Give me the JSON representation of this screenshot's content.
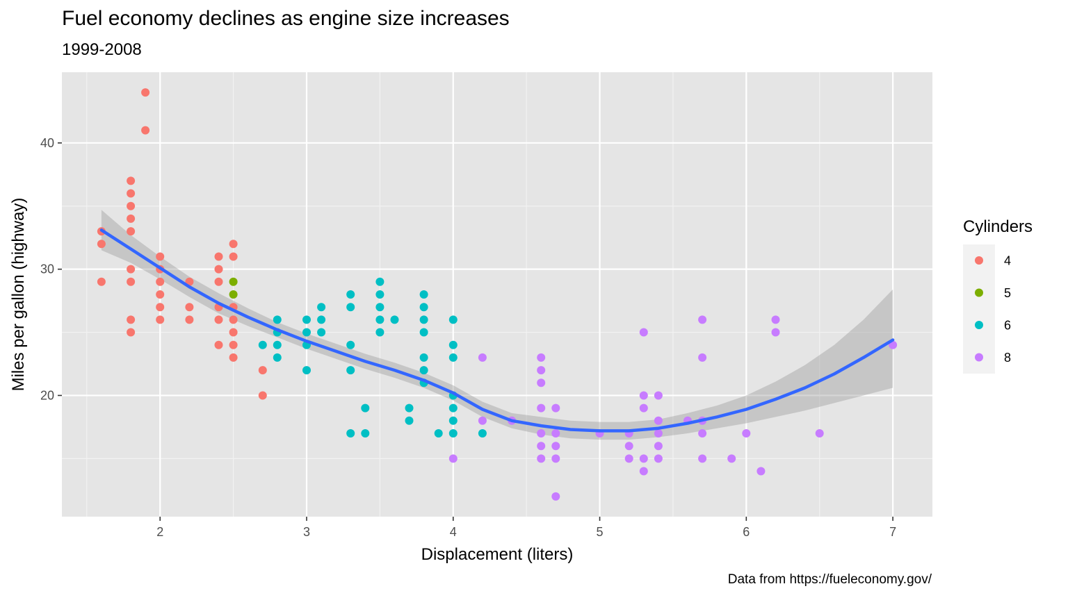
{
  "chart_data": {
    "type": "scatter",
    "title": "Fuel economy declines as engine size increases",
    "subtitle": "1999-2008",
    "caption": "Data from https://fueleconomy.gov/",
    "xlabel": "Displacement (liters)",
    "ylabel": "Miles per gallon (highway)",
    "xlim": [
      1.33,
      7.27
    ],
    "ylim": [
      10.4,
      45.6
    ],
    "x_ticks": [
      2,
      3,
      4,
      5,
      6,
      7
    ],
    "x_tick_labels": [
      "2",
      "3",
      "4",
      "5",
      "6",
      "7"
    ],
    "y_ticks": [
      20,
      30,
      40
    ],
    "y_tick_labels": [
      "20",
      "30",
      "40"
    ],
    "x_minor_ticks": [
      1.5,
      2.5,
      3.5,
      4.5,
      5.5,
      6.5
    ],
    "y_minor_ticks": [
      15,
      25,
      35
    ],
    "grid": true,
    "background": "#e5e5e5",
    "legend": {
      "title": "Cylinders",
      "position": "right",
      "entries": [
        {
          "label": "4",
          "color": "#f8766d"
        },
        {
          "label": "5",
          "color": "#7cae00"
        },
        {
          "label": "6",
          "color": "#00bfc4"
        },
        {
          "label": "8",
          "color": "#c77cff"
        }
      ]
    },
    "series": [
      {
        "name": "4",
        "color": "#f8766d",
        "points": [
          [
            1.6,
            33
          ],
          [
            1.6,
            32
          ],
          [
            1.6,
            29
          ],
          [
            1.8,
            37
          ],
          [
            1.8,
            36
          ],
          [
            1.8,
            35
          ],
          [
            1.8,
            34
          ],
          [
            1.8,
            33
          ],
          [
            1.8,
            30
          ],
          [
            1.8,
            29
          ],
          [
            1.8,
            26
          ],
          [
            1.8,
            25
          ],
          [
            1.9,
            44
          ],
          [
            1.9,
            41
          ],
          [
            2.0,
            31
          ],
          [
            2.0,
            30
          ],
          [
            2.0,
            29
          ],
          [
            2.0,
            28
          ],
          [
            2.0,
            27
          ],
          [
            2.0,
            26
          ],
          [
            2.2,
            29
          ],
          [
            2.2,
            27
          ],
          [
            2.2,
            26
          ],
          [
            2.4,
            31
          ],
          [
            2.4,
            30
          ],
          [
            2.4,
            29
          ],
          [
            2.4,
            27
          ],
          [
            2.4,
            26
          ],
          [
            2.4,
            24
          ],
          [
            2.5,
            32
          ],
          [
            2.5,
            31
          ],
          [
            2.5,
            27
          ],
          [
            2.5,
            26
          ],
          [
            2.5,
            25
          ],
          [
            2.5,
            24
          ],
          [
            2.5,
            23
          ],
          [
            2.7,
            22
          ],
          [
            2.7,
            20
          ]
        ]
      },
      {
        "name": "5",
        "color": "#7cae00",
        "points": [
          [
            2.5,
            29
          ],
          [
            2.5,
            28
          ]
        ]
      },
      {
        "name": "6",
        "color": "#00bfc4",
        "points": [
          [
            2.7,
            24
          ],
          [
            2.8,
            26
          ],
          [
            2.8,
            25
          ],
          [
            2.8,
            24
          ],
          [
            2.8,
            23
          ],
          [
            3.0,
            26
          ],
          [
            3.0,
            25
          ],
          [
            3.0,
            24
          ],
          [
            3.0,
            22
          ],
          [
            3.1,
            27
          ],
          [
            3.1,
            26
          ],
          [
            3.1,
            25
          ],
          [
            3.3,
            28
          ],
          [
            3.3,
            27
          ],
          [
            3.3,
            24
          ],
          [
            3.3,
            22
          ],
          [
            3.3,
            17
          ],
          [
            3.4,
            19
          ],
          [
            3.4,
            17
          ],
          [
            3.5,
            29
          ],
          [
            3.5,
            28
          ],
          [
            3.5,
            27
          ],
          [
            3.5,
            26
          ],
          [
            3.5,
            25
          ],
          [
            3.6,
            26
          ],
          [
            3.7,
            19
          ],
          [
            3.7,
            18
          ],
          [
            3.8,
            28
          ],
          [
            3.8,
            27
          ],
          [
            3.8,
            26
          ],
          [
            3.8,
            25
          ],
          [
            3.8,
            23
          ],
          [
            3.8,
            22
          ],
          [
            3.8,
            21
          ],
          [
            3.9,
            17
          ],
          [
            4.0,
            26
          ],
          [
            4.0,
            24
          ],
          [
            4.0,
            23
          ],
          [
            4.0,
            20
          ],
          [
            4.0,
            19
          ],
          [
            4.0,
            18
          ],
          [
            4.0,
            17
          ],
          [
            4.2,
            17
          ]
        ]
      },
      {
        "name": "8",
        "color": "#c77cff",
        "points": [
          [
            4.0,
            15
          ],
          [
            4.2,
            23
          ],
          [
            4.2,
            18
          ],
          [
            4.4,
            18
          ],
          [
            4.6,
            23
          ],
          [
            4.6,
            22
          ],
          [
            4.6,
            21
          ],
          [
            4.6,
            19
          ],
          [
            4.6,
            17
          ],
          [
            4.6,
            16
          ],
          [
            4.6,
            15
          ],
          [
            4.7,
            19
          ],
          [
            4.7,
            17
          ],
          [
            4.7,
            16
          ],
          [
            4.7,
            15
          ],
          [
            4.7,
            12
          ],
          [
            5.0,
            17
          ],
          [
            5.2,
            17
          ],
          [
            5.2,
            16
          ],
          [
            5.2,
            15
          ],
          [
            5.3,
            25
          ],
          [
            5.3,
            20
          ],
          [
            5.3,
            19
          ],
          [
            5.3,
            15
          ],
          [
            5.3,
            14
          ],
          [
            5.4,
            20
          ],
          [
            5.4,
            18
          ],
          [
            5.4,
            17
          ],
          [
            5.4,
            16
          ],
          [
            5.4,
            15
          ],
          [
            5.6,
            18
          ],
          [
            5.7,
            26
          ],
          [
            5.7,
            23
          ],
          [
            5.7,
            18
          ],
          [
            5.7,
            17
          ],
          [
            5.7,
            15
          ],
          [
            5.9,
            15
          ],
          [
            6.0,
            17
          ],
          [
            6.1,
            14
          ],
          [
            6.2,
            26
          ],
          [
            6.2,
            25
          ],
          [
            6.5,
            17
          ],
          [
            7.0,
            24
          ]
        ]
      }
    ],
    "smooth": {
      "method": "loess",
      "color": "#3366ff",
      "ribbon_color": "#999999",
      "x": [
        1.6,
        1.8,
        2.0,
        2.2,
        2.4,
        2.6,
        2.8,
        3.0,
        3.2,
        3.4,
        3.6,
        3.8,
        4.0,
        4.2,
        4.4,
        4.6,
        4.8,
        5.0,
        5.2,
        5.4,
        5.6,
        5.8,
        6.0,
        6.2,
        6.4,
        6.6,
        6.8,
        7.0
      ],
      "y": [
        33.1,
        31.6,
        30.1,
        28.6,
        27.3,
        26.2,
        25.2,
        24.3,
        23.5,
        22.7,
        22.0,
        21.2,
        20.2,
        18.9,
        18.0,
        17.6,
        17.3,
        17.2,
        17.2,
        17.4,
        17.8,
        18.3,
        18.9,
        19.7,
        20.6,
        21.7,
        23.0,
        24.4
      ],
      "lower": [
        31.5,
        30.5,
        29.2,
        27.8,
        26.5,
        25.5,
        24.6,
        23.7,
        22.9,
        22.1,
        21.4,
        20.6,
        19.6,
        18.3,
        17.4,
        16.9,
        16.6,
        16.5,
        16.5,
        16.7,
        17.0,
        17.4,
        17.8,
        18.3,
        18.8,
        19.4,
        20.0,
        20.6
      ],
      "upper": [
        34.7,
        32.7,
        31.0,
        29.4,
        28.1,
        26.9,
        25.8,
        24.9,
        24.1,
        23.3,
        22.6,
        21.8,
        20.8,
        19.5,
        18.6,
        18.3,
        18.0,
        17.9,
        17.9,
        18.1,
        18.6,
        19.2,
        20.0,
        21.1,
        22.4,
        24.0,
        26.0,
        28.4
      ]
    }
  }
}
